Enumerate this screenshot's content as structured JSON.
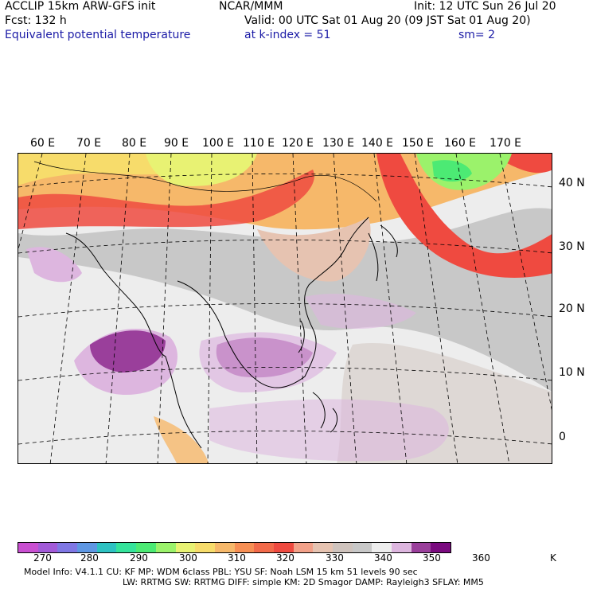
{
  "header": {
    "title_left": "ACCLIP 15km ARW-GFS init",
    "forecast": "Fcst:  132 h",
    "field_name": "Equivalent potential temperature",
    "org": "NCAR/MMM",
    "init": "Init: 12 UTC Sun 26 Jul 20",
    "valid": "Valid: 00 UTC Sat 01 Aug 20 (09 JST Sat 01 Aug 20)",
    "level": "at k-index =  51",
    "smoothing": "sm= 2"
  },
  "map": {
    "lon_labels": [
      "60 E",
      "70 E",
      "80 E",
      "90 E",
      "100 E",
      "110 E",
      "120 E",
      "130 E",
      "140 E",
      "150 E",
      "160 E",
      "170 E"
    ],
    "lat_labels": [
      "40 N",
      "30 N",
      "20 N",
      "10 N",
      "0"
    ]
  },
  "colorbar": {
    "colors": [
      "#c94fd1",
      "#a25ad8",
      "#7f77e4",
      "#5e97e3",
      "#2ec2c2",
      "#35e39b",
      "#4cea74",
      "#9bf26b",
      "#e8f273",
      "#f7dc6b",
      "#f6b86a",
      "#f78f54",
      "#f26a4a",
      "#ef4a40",
      "#f2a189",
      "#e6c3b1",
      "#cfc3bd",
      "#c8c8c8",
      "#ededed",
      "#ddb6df",
      "#9a3f9b",
      "#7a0a7f"
    ],
    "tick_labels": [
      "270",
      "280",
      "290",
      "300",
      "310",
      "320",
      "330",
      "340",
      "350",
      "360"
    ],
    "unit": "K"
  },
  "footer": {
    "line1": "Model Info: V4.1.1      CU: KF        MP: WDM 6class   PBL: YSU       SF: Noah LSM     15 km    51 levels    90 sec",
    "line2": "LW: RRTMG    SW: RRTMG   DIFF: simple KM: 2D Smagor DAMP: Rayleigh3   SFLAY: MM5"
  }
}
